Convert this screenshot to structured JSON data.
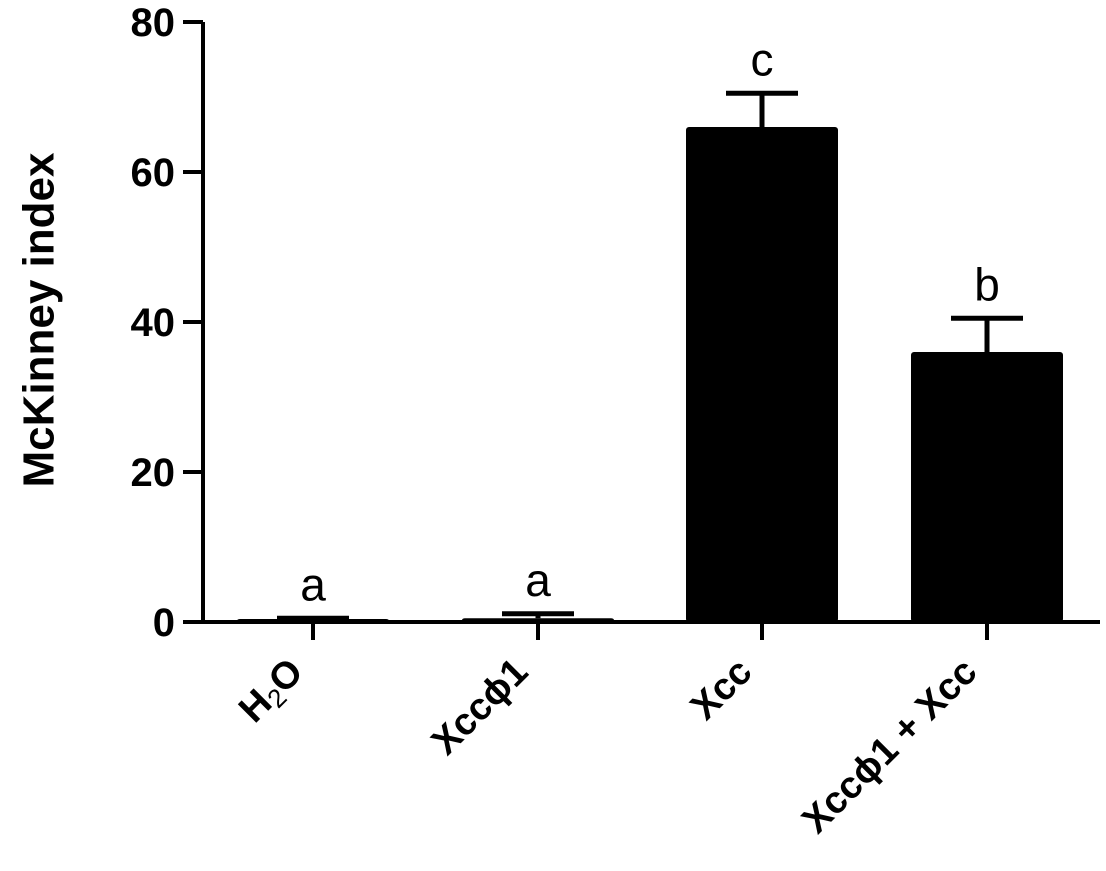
{
  "chart_data": {
    "type": "bar",
    "categories": [
      "H2O",
      "Xccϕ1",
      "Xcc",
      "Xccϕ1 + Xcc"
    ],
    "values": [
      0.3,
      0.5,
      66,
      36
    ],
    "errors": [
      0.2,
      0.6,
      4.5,
      4.5
    ],
    "significance": [
      "a",
      "a",
      "c",
      "b"
    ],
    "ylabel": "McKinney index",
    "xlabel": "",
    "ylim": [
      0,
      80
    ],
    "yticks": [
      0,
      20,
      40,
      60,
      80
    ],
    "colors": {
      "bar": "#000000",
      "axis": "#000000"
    },
    "grid": false,
    "legend": "none"
  }
}
